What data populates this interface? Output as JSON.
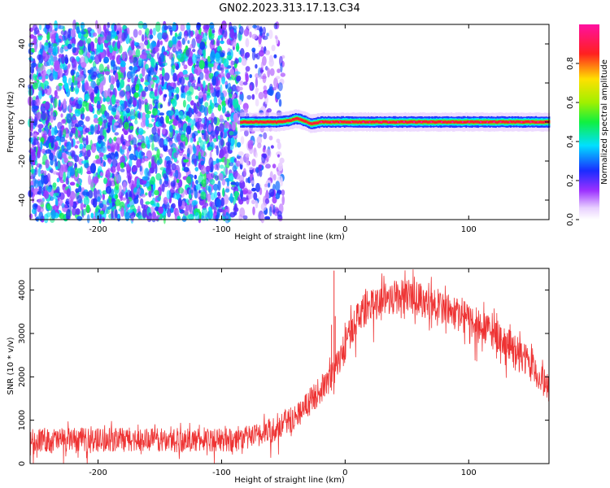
{
  "figure": {
    "title": "GN02.2023.313.17.13.C34"
  },
  "chart_data": [
    {
      "type": "heatmap",
      "xlabel": "Height of straight line (km)",
      "ylabel": "Frequency (Hz)",
      "xlim": [
        -255,
        165
      ],
      "ylim": [
        -50,
        50
      ],
      "x_ticks": [
        -200,
        -100,
        0,
        100
      ],
      "y_ticks": [
        -40,
        -20,
        0,
        20,
        40
      ],
      "grid": false,
      "colorbar": {
        "label": "Normalized spectral amplitude",
        "range": [
          0.0,
          1.0
        ],
        "ticks": [
          0.0,
          0.2,
          0.4,
          0.6,
          0.8
        ],
        "colormap": "rainbow (white → violet → blue → cyan → green → yellow → red → magenta)"
      },
      "regions": [
        {
          "x_range": [
            -255,
            -85
          ],
          "frequency_range": [
            -50,
            50
          ],
          "description": "broadband noise",
          "amplitude_range": [
            0.1,
            0.5
          ]
        },
        {
          "x_range": [
            -85,
            -50
          ],
          "frequency_range": [
            -50,
            50
          ],
          "description": "sparse noise",
          "amplitude_range": [
            0.05,
            0.3
          ]
        },
        {
          "x_range": [
            -85,
            165
          ],
          "frequency_center": 0,
          "frequency_width": 4,
          "description": "narrow signal near 0 Hz",
          "amplitude_range": [
            0.6,
            1.0
          ]
        }
      ],
      "signal_track": {
        "x": [
          -85,
          -70,
          -55,
          -45,
          -40,
          -33,
          -28,
          -20,
          0,
          30,
          60,
          100,
          130,
          165
        ],
        "frequency": [
          0,
          0,
          0,
          0.8,
          1.8,
          0.5,
          -1,
          0,
          0,
          0,
          0,
          0,
          0,
          0
        ]
      }
    },
    {
      "type": "line",
      "xlabel": "Height of straight line (km)",
      "ylabel": "SNR (10 * v/v)",
      "xlim": [
        -255,
        165
      ],
      "ylim": [
        0,
        4500
      ],
      "x_ticks": [
        -200,
        -100,
        0,
        100
      ],
      "y_ticks": [
        0,
        1000,
        2000,
        3000,
        4000
      ],
      "grid": false,
      "series": [
        {
          "color": "#ee3333",
          "x": [
            -255,
            -230,
            -200,
            -170,
            -140,
            -110,
            -90,
            -75,
            -60,
            -50,
            -40,
            -30,
            -20,
            -15,
            -10,
            -5,
            0,
            5,
            10,
            20,
            30,
            40,
            50,
            60,
            70,
            80,
            90,
            100,
            110,
            120,
            130,
            140,
            150,
            160,
            165
          ],
          "y": [
            550,
            550,
            550,
            550,
            540,
            540,
            550,
            620,
            760,
            900,
            1100,
            1380,
            1700,
            1850,
            2050,
            2380,
            2700,
            3100,
            3400,
            3650,
            3800,
            3850,
            3850,
            3800,
            3700,
            3600,
            3450,
            3320,
            3150,
            3000,
            2800,
            2550,
            2250,
            1900,
            1720
          ],
          "noise_band": 420,
          "spikes": [
            {
              "x": -9,
              "y": 4450
            },
            {
              "x": -8,
              "y": 3400
            },
            {
              "x": -11,
              "y": 3200
            }
          ]
        }
      ]
    }
  ]
}
